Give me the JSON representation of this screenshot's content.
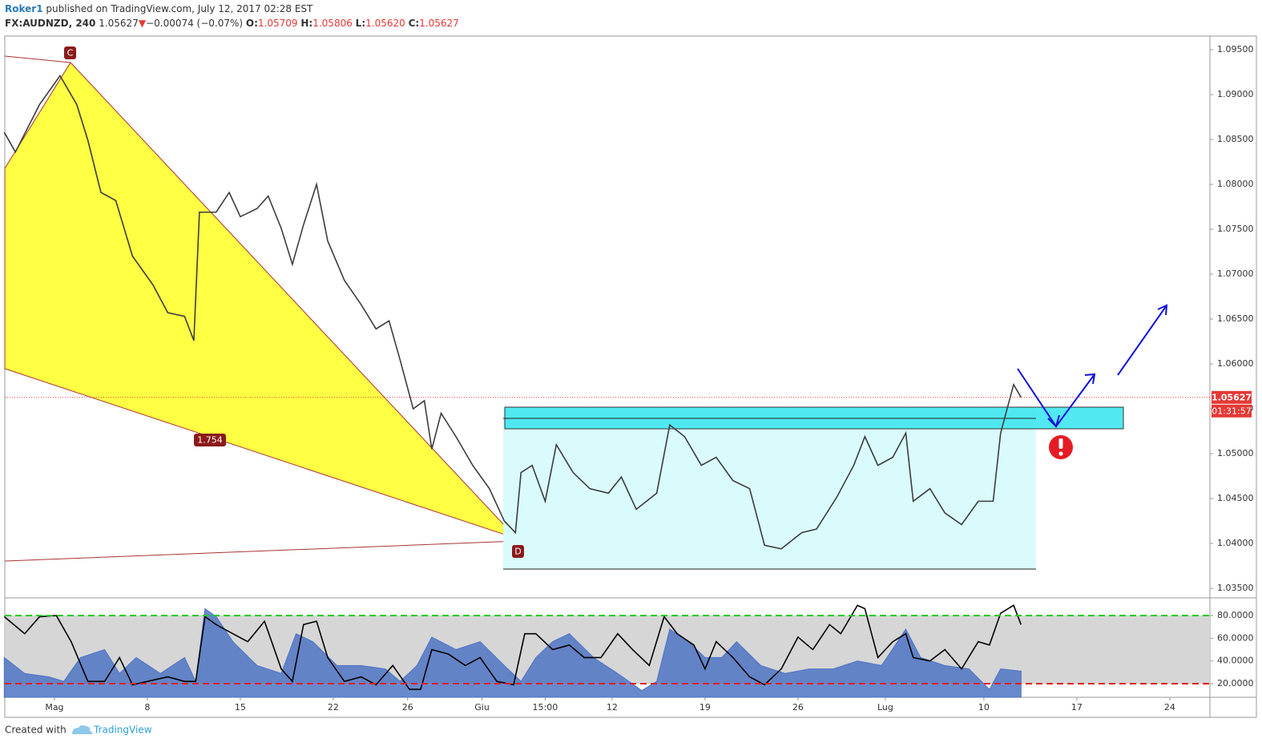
{
  "header": {
    "author": "Roker1",
    "published": "published on TradingView.com, July 12, 2017 02:28 EST",
    "symbol": "FX:AUDNZD, 240",
    "last": "1.05627",
    "direction": "▼",
    "change": "−0.00074 (−0.07%)",
    "o_label": "O:",
    "o": "1.05709",
    "h_label": "H:",
    "h": "1.05806",
    "l_label": "L:",
    "l": "1.05620",
    "c_label": "C:",
    "c": "1.05627"
  },
  "chart_data": [
    {
      "type": "line",
      "xlim": [
        -2.67,
        62.16
      ],
      "xticks": [
        {
          "value": 0,
          "label": "Mag"
        },
        {
          "value": 5,
          "label": "8"
        },
        {
          "value": 10,
          "label": "15"
        },
        {
          "value": 15,
          "label": "22"
        },
        {
          "value": 19,
          "label": "26"
        },
        {
          "value": 23,
          "label": "Giu"
        },
        {
          "value": 26.4,
          "label": "15:00"
        },
        {
          "value": 30,
          "label": "12"
        },
        {
          "value": 35,
          "label": "19"
        },
        {
          "value": 40,
          "label": "26"
        },
        {
          "value": 44.7,
          "label": "Lug"
        },
        {
          "value": 50,
          "label": "10"
        },
        {
          "value": 55,
          "label": "17"
        },
        {
          "value": 60,
          "label": "24"
        }
      ],
      "ylim": [
        1.03402,
        1.09652
      ],
      "yticks": [
        {
          "value": 1.035,
          "label": "1.03500"
        },
        {
          "value": 1.04,
          "label": "1.04000"
        },
        {
          "value": 1.045,
          "label": "1.04500"
        },
        {
          "value": 1.05,
          "label": "1.05000"
        },
        {
          "value": 1.055,
          "label": "1.05500"
        },
        {
          "value": 1.06,
          "label": "1.06000"
        },
        {
          "value": 1.065,
          "label": "1.06500"
        },
        {
          "value": 1.07,
          "label": "1.07000"
        },
        {
          "value": 1.075,
          "label": "1.07500"
        },
        {
          "value": 1.08,
          "label": "1.08000"
        },
        {
          "value": 1.085,
          "label": "1.08500"
        },
        {
          "value": 1.09,
          "label": "1.09000"
        },
        {
          "value": 1.095,
          "label": "1.09500"
        }
      ],
      "series": [
        {
          "color": "#3d3d3d",
          "x": [
            -2.7,
            -2.1,
            -0.8,
            0.3,
            1.2,
            1.8,
            2.5,
            3.3,
            4.2,
            5.3,
            6.1,
            7.0,
            7.5,
            7.8,
            8.7,
            9.4,
            10.0,
            10.9,
            11.5,
            12.2,
            12.8,
            13.4,
            14.1,
            14.7,
            15.6,
            16.5,
            17.3,
            18.0,
            18.6,
            19.3,
            19.9,
            20.3,
            20.8,
            21.6,
            22.5,
            23.4,
            24.2,
            24.8,
            25.1,
            25.7,
            26.4,
            27.0,
            27.9,
            28.8,
            29.8,
            30.5,
            31.3,
            32.4,
            33.1,
            33.9,
            34.8,
            35.6,
            36.5,
            37.4,
            38.2,
            39.1,
            40.2,
            41.0,
            42.1,
            43.0,
            43.6,
            44.3,
            45.1,
            45.8,
            46.2,
            47.1,
            47.9,
            48.8,
            49.7,
            50.5,
            50.9,
            51.6,
            52.0
          ],
          "values": [
            1.0858,
            1.0836,
            1.0889,
            1.0921,
            1.0889,
            1.0849,
            1.0791,
            1.0782,
            1.072,
            1.0688,
            1.0657,
            1.0653,
            1.0626,
            1.0769,
            1.0769,
            1.0791,
            1.0764,
            1.0773,
            1.0787,
            1.0751,
            1.0711,
            1.0755,
            1.08,
            1.0737,
            1.0693,
            1.0666,
            1.0639,
            1.0648,
            1.0604,
            1.055,
            1.0559,
            1.0505,
            1.0545,
            1.0519,
            1.0487,
            1.0461,
            1.0425,
            1.0412,
            1.0479,
            1.0487,
            1.0447,
            1.051,
            1.0479,
            1.0461,
            1.0456,
            1.0474,
            1.0438,
            1.0456,
            1.0532,
            1.0519,
            1.0487,
            1.0496,
            1.047,
            1.0461,
            1.0398,
            1.0394,
            1.0412,
            1.0416,
            1.0452,
            1.0487,
            1.0519,
            1.0487,
            1.0496,
            1.0523,
            1.0447,
            1.0461,
            1.0434,
            1.0421,
            1.0447,
            1.0447,
            1.0523,
            1.0577,
            1.05627
          ]
        }
      ],
      "price_line": {
        "value": 1.05627,
        "label": "1.05627",
        "color": "#e53935"
      },
      "countdown": "01:31:57",
      "annotations": {
        "point_c": "C",
        "point_d": "D",
        "ratio": "1.754"
      }
    },
    {
      "type": "line",
      "ylim": [
        8,
        94.8
      ],
      "yticks": [
        {
          "value": 20,
          "label": "20.0000"
        },
        {
          "value": 40,
          "label": "40.0000"
        },
        {
          "value": 60,
          "label": "60.0000"
        },
        {
          "value": 80,
          "label": "80.0000"
        }
      ],
      "band_color": "#d6d6d6",
      "levels": [
        {
          "value": 80,
          "color": "#22cc22"
        },
        {
          "value": 20,
          "color": "#e02020"
        }
      ],
      "series": [
        {
          "color": "#4f74c4",
          "fill": true,
          "x": [
            -2.7,
            -1.6,
            -0.3,
            0.5,
            1.4,
            2.7,
            3.5,
            4.4,
            5.7,
            7.0,
            7.6,
            8.1,
            8.7,
            9.6,
            10.9,
            12.2,
            13.0,
            13.9,
            15.2,
            16.5,
            17.8,
            18.6,
            19.5,
            20.3,
            21.6,
            22.9,
            24.2,
            25.1,
            25.9,
            26.8,
            27.7,
            29.0,
            30.3,
            31.6,
            32.4,
            33.1,
            34.1,
            35.0,
            35.9,
            36.7,
            38.0,
            39.3,
            40.6,
            41.9,
            43.2,
            44.5,
            45.8,
            46.6,
            47.9,
            49.2,
            50.3,
            50.9,
            52.0
          ],
          "values": [
            43,
            29,
            26,
            22,
            43,
            50,
            29,
            43,
            29,
            43,
            22,
            86,
            79,
            57,
            36,
            29,
            64,
            57,
            36,
            36,
            33,
            22,
            36,
            61,
            50,
            57,
            36,
            22,
            43,
            57,
            64,
            43,
            29,
            14,
            22,
            68,
            57,
            43,
            43,
            57,
            36,
            29,
            33,
            33,
            40,
            36,
            68,
            43,
            36,
            33,
            15,
            33,
            31
          ]
        },
        {
          "color": "#000000",
          "x": [
            -2.7,
            -1.6,
            -0.8,
            0.1,
            0.9,
            1.8,
            2.7,
            3.5,
            4.2,
            5.0,
            6.1,
            7.0,
            7.6,
            8.1,
            8.7,
            9.6,
            10.4,
            11.3,
            12.2,
            12.8,
            13.4,
            14.1,
            14.7,
            15.6,
            16.5,
            17.3,
            18.2,
            19.1,
            19.7,
            20.3,
            21.2,
            22.1,
            22.9,
            23.8,
            24.7,
            25.3,
            25.9,
            26.8,
            27.7,
            28.5,
            29.4,
            30.3,
            31.1,
            32.0,
            32.8,
            33.5,
            34.4,
            35.0,
            35.6,
            36.5,
            37.4,
            38.2,
            39.1,
            40.0,
            40.8,
            41.7,
            42.3,
            43.2,
            43.6,
            44.3,
            45.1,
            45.8,
            46.2,
            47.1,
            47.9,
            48.8,
            49.7,
            50.3,
            50.9,
            51.6,
            52.0
          ],
          "values": [
            79,
            64,
            79,
            80,
            57,
            22,
            22,
            43,
            19,
            22,
            26,
            22,
            22,
            79,
            72,
            64,
            57,
            75,
            33,
            22,
            72,
            75,
            43,
            22,
            26,
            19,
            36,
            15,
            15,
            50,
            46,
            36,
            43,
            22,
            19,
            64,
            64,
            50,
            54,
            43,
            43,
            64,
            50,
            36,
            79,
            64,
            54,
            33,
            57,
            43,
            26,
            19,
            33,
            61,
            50,
            72,
            64,
            89,
            86,
            43,
            57,
            64,
            43,
            40,
            50,
            33,
            57,
            54,
            82,
            89,
            72
          ]
        }
      ]
    }
  ],
  "footer": {
    "created": "Created with",
    "brand": "TradingView"
  }
}
